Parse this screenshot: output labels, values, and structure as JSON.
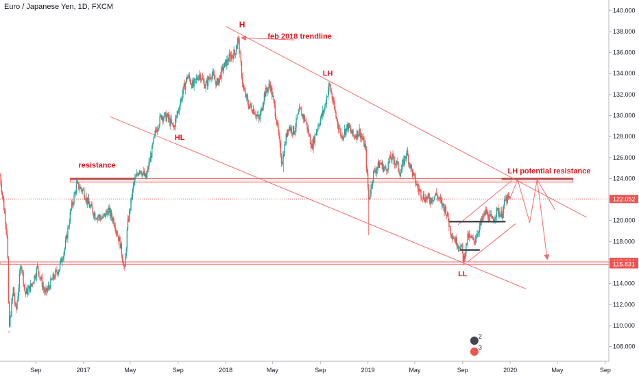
{
  "header": {
    "symbol_title": "Euro / Japanese Yen, 1D, FXCM"
  },
  "colors": {
    "up": "#26a69a",
    "down": "#ef5350",
    "annotation": "#e0141b",
    "line": "#f26a6a",
    "price_line": "#ef5350",
    "axis_text": "#131722",
    "bar_dark": "#434651"
  },
  "chart_data": {
    "type": "candlestick",
    "title": "Euro / Japanese Yen, 1D, FXCM",
    "ylim": [
      106.6,
      141.0
    ],
    "y_ticks": [
      108,
      110,
      112,
      114,
      116,
      118,
      120,
      122,
      124,
      126,
      128,
      130,
      132,
      134,
      136,
      138,
      140
    ],
    "y_tick_labels": [
      "108.000",
      "110.000",
      "112.000",
      "114.000",
      "116.000",
      "118.000",
      "120.000",
      "122.000",
      "124.000",
      "126.000",
      "128.000",
      "130.000",
      "132.000",
      "134.000",
      "136.000",
      "138.000",
      "140.000"
    ],
    "x_range": [
      "2016-06-01",
      "2020-09-10"
    ],
    "x_ticks": [
      {
        "label": "Sep",
        "date": "2016-09-01"
      },
      {
        "label": "2017",
        "date": "2017-01-01"
      },
      {
        "label": "May",
        "date": "2017-05-01"
      },
      {
        "label": "Sep",
        "date": "2017-09-01"
      },
      {
        "label": "2018",
        "date": "2018-01-01"
      },
      {
        "label": "May",
        "date": "2018-05-01"
      },
      {
        "label": "Sep",
        "date": "2018-09-01"
      },
      {
        "label": "2019",
        "date": "2019-01-01"
      },
      {
        "label": "May",
        "date": "2019-05-01"
      },
      {
        "label": "Sep",
        "date": "2019-09-01"
      },
      {
        "label": "2020",
        "date": "2020-01-01"
      },
      {
        "label": "May",
        "date": "2020-05-01"
      },
      {
        "label": "Sep",
        "date": "2020-09-01"
      }
    ],
    "price_path": [
      [
        "2016-06-01",
        124.3
      ],
      [
        "2016-06-20",
        118.5
      ],
      [
        "2016-06-24",
        109.5
      ],
      [
        "2016-07-05",
        113.5
      ],
      [
        "2016-07-12",
        111.2
      ],
      [
        "2016-07-25",
        116.0
      ],
      [
        "2016-08-05",
        113.0
      ],
      [
        "2016-08-20",
        113.8
      ],
      [
        "2016-09-05",
        115.5
      ],
      [
        "2016-09-25",
        113.0
      ],
      [
        "2016-10-15",
        114.5
      ],
      [
        "2016-10-31",
        115.5
      ],
      [
        "2016-11-15",
        117.5
      ],
      [
        "2016-11-30",
        121.0
      ],
      [
        "2016-12-15",
        123.4
      ],
      [
        "2017-01-01",
        122.8
      ],
      [
        "2017-01-15",
        121.5
      ],
      [
        "2017-02-01",
        120.5
      ],
      [
        "2017-02-20",
        120.2
      ],
      [
        "2017-03-05",
        121.0
      ],
      [
        "2017-03-20",
        120.0
      ],
      [
        "2017-04-05",
        117.8
      ],
      [
        "2017-04-17",
        115.2
      ],
      [
        "2017-04-24",
        119.5
      ],
      [
        "2017-05-10",
        123.5
      ],
      [
        "2017-05-25",
        125.0
      ],
      [
        "2017-06-10",
        124.0
      ],
      [
        "2017-06-25",
        126.5
      ],
      [
        "2017-07-05",
        128.5
      ],
      [
        "2017-07-20",
        130.0
      ],
      [
        "2017-08-05",
        129.8
      ],
      [
        "2017-08-20",
        128.8
      ],
      [
        "2017-09-01",
        130.5
      ],
      [
        "2017-09-15",
        132.5
      ],
      [
        "2017-09-25",
        133.8
      ],
      [
        "2017-10-10",
        132.8
      ],
      [
        "2017-10-25",
        134.0
      ],
      [
        "2017-11-10",
        132.8
      ],
      [
        "2017-11-25",
        134.0
      ],
      [
        "2017-12-10",
        133.0
      ],
      [
        "2017-12-25",
        134.5
      ],
      [
        "2018-01-10",
        135.5
      ],
      [
        "2018-01-25",
        136.0
      ],
      [
        "2018-02-02",
        137.4
      ],
      [
        "2018-02-15",
        132.5
      ],
      [
        "2018-03-01",
        131.0
      ],
      [
        "2018-03-15",
        130.5
      ],
      [
        "2018-03-28",
        129.5
      ],
      [
        "2018-04-10",
        132.0
      ],
      [
        "2018-04-25",
        133.0
      ],
      [
        "2018-05-10",
        130.0
      ],
      [
        "2018-05-25",
        125.5
      ],
      [
        "2018-06-10",
        129.0
      ],
      [
        "2018-06-25",
        128.5
      ],
      [
        "2018-07-10",
        130.5
      ],
      [
        "2018-07-25",
        129.5
      ],
      [
        "2018-08-10",
        127.0
      ],
      [
        "2018-08-25",
        129.0
      ],
      [
        "2018-09-10",
        130.5
      ],
      [
        "2018-09-24",
        133.0
      ],
      [
        "2018-10-10",
        130.0
      ],
      [
        "2018-10-25",
        128.0
      ],
      [
        "2018-11-10",
        129.0
      ],
      [
        "2018-11-25",
        128.0
      ],
      [
        "2018-12-10",
        128.5
      ],
      [
        "2018-12-25",
        127.0
      ],
      [
        "2019-01-03",
        122.0
      ],
      [
        "2019-01-15",
        124.5
      ],
      [
        "2019-02-01",
        125.5
      ],
      [
        "2019-02-15",
        124.8
      ],
      [
        "2019-03-01",
        126.0
      ],
      [
        "2019-03-15",
        125.5
      ],
      [
        "2019-03-25",
        124.5
      ],
      [
        "2019-04-10",
        126.5
      ],
      [
        "2019-04-25",
        124.5
      ],
      [
        "2019-05-10",
        123.0
      ],
      [
        "2019-05-25",
        122.2
      ],
      [
        "2019-06-10",
        122.0
      ],
      [
        "2019-06-25",
        122.5
      ],
      [
        "2019-07-10",
        121.5
      ],
      [
        "2019-07-20",
        121.0
      ],
      [
        "2019-08-01",
        119.0
      ],
      [
        "2019-08-15",
        118.0
      ],
      [
        "2019-08-28",
        117.5
      ],
      [
        "2019-09-03",
        116.2
      ],
      [
        "2019-09-15",
        118.5
      ],
      [
        "2019-09-30",
        118.0
      ],
      [
        "2019-10-15",
        119.5
      ],
      [
        "2019-10-30",
        120.8
      ],
      [
        "2019-11-15",
        120.0
      ],
      [
        "2019-11-30",
        121.0
      ],
      [
        "2019-12-10",
        120.5
      ],
      [
        "2019-12-20",
        122.0
      ],
      [
        "2019-12-31",
        122.05
      ]
    ],
    "spikes": [
      {
        "date": "2016-06-24",
        "low": 109.3
      },
      {
        "date": "2019-01-03",
        "low": 118.6
      },
      {
        "date": "2018-05-29",
        "low": 124.6
      }
    ],
    "current_price": 122.052,
    "price_labels": [
      {
        "value": 122.052,
        "text": "122.052"
      },
      {
        "value": 116.064,
        "text": "116.064"
      },
      {
        "value": 115.831,
        "text": "115.831"
      }
    ],
    "resistance_zone": {
      "from": 123.65,
      "to": 124.0
    },
    "support_zone": {
      "from": 115.831,
      "to": 116.064
    },
    "lines": [
      {
        "name": "feb-2018-trendline",
        "from": [
          "2018-01-01",
          138.5
        ],
        "to": [
          "2020-07-15",
          120.3
        ]
      },
      {
        "name": "lower-trendline",
        "from": [
          "2017-03-10",
          129.9
        ],
        "to": [
          "2020-02-10",
          113.5
        ]
      },
      {
        "name": "h-arrow",
        "from": [
          "2018-06-28",
          137.2
        ],
        "to": [
          "2018-02-10",
          137.4
        ]
      },
      {
        "name": "wedge-upper",
        "from": [
          "2019-08-20",
          119.6
        ],
        "to": [
          "2020-01-05",
          123.8
        ]
      },
      {
        "name": "wedge-lower",
        "from": [
          "2019-09-15",
          116.1
        ],
        "to": [
          "2020-01-15",
          119.7
        ]
      },
      {
        "name": "proj-1",
        "from": [
          "2019-12-31",
          122.05
        ],
        "to": [
          "2020-01-20",
          123.9
        ]
      },
      {
        "name": "proj-2",
        "from": [
          "2020-01-20",
          123.9
        ],
        "to": [
          "2020-02-20",
          119.8
        ]
      },
      {
        "name": "proj-3",
        "from": [
          "2020-02-20",
          119.8
        ],
        "to": [
          "2020-03-10",
          123.9
        ]
      },
      {
        "name": "proj-4",
        "from": [
          "2020-03-10",
          123.9
        ],
        "to": [
          "2020-04-05",
          116.3
        ]
      },
      {
        "name": "proj-fan",
        "from": [
          "2020-03-10",
          123.9
        ],
        "to": [
          "2020-04-25",
          121.0
        ]
      }
    ],
    "neckline_bars": [
      {
        "name": "neckline-upper",
        "from": "2019-07-28",
        "to": "2019-12-20",
        "value": 119.9
      },
      {
        "name": "neckline-lower",
        "from": "2019-08-25",
        "to": "2019-10-15",
        "value": 117.2
      }
    ],
    "annotations": [
      {
        "text": "H",
        "date": "2018-02-12",
        "value": 138.4,
        "size": 12
      },
      {
        "text": "feb 2018 trendline",
        "date": "2018-07-10",
        "value": 137.3,
        "size": 11
      },
      {
        "text": "LH",
        "date": "2018-09-20",
        "value": 133.8,
        "size": 11
      },
      {
        "text": "HL",
        "date": "2017-09-05",
        "value": 127.7,
        "size": 11
      },
      {
        "text": "resistance",
        "date": "2017-02-05",
        "value": 125.05,
        "size": 11
      },
      {
        "text": "LH potential resistance",
        "date": "2020-04-10",
        "value": 124.5,
        "size": 11
      },
      {
        "text": "LL",
        "date": "2019-09-01",
        "value": 114.7,
        "size": 11
      }
    ],
    "badges": [
      "2",
      "3"
    ],
    "grid": false
  }
}
